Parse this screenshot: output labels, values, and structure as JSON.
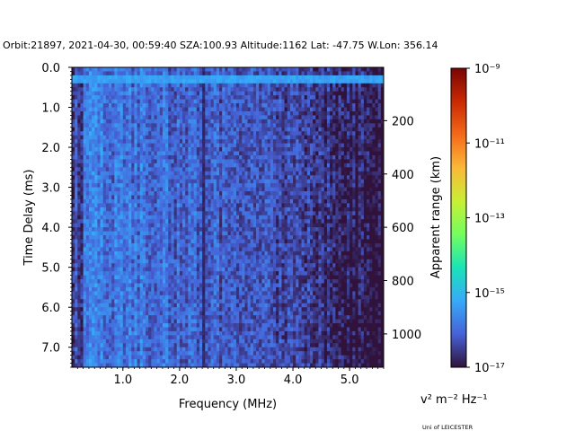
{
  "chart_data": {
    "type": "heatmap",
    "title": "Orbit:21897, 2021-04-30, 00:59:40 SZA:100.93 Altitude:1162 Lat: -47.75 W.Lon: 356.14",
    "xlabel": "Frequency (MHz)",
    "ylabel": "Time Delay (ms)",
    "y2label": "Apparent range (km)",
    "xlim": [
      0.1,
      5.6
    ],
    "ylim": [
      7.5,
      0.0
    ],
    "x_ticks": [
      {
        "value": 1.0,
        "label": "1.0"
      },
      {
        "value": 2.0,
        "label": "2.0"
      },
      {
        "value": 3.0,
        "label": "3.0"
      },
      {
        "value": 4.0,
        "label": "4.0"
      },
      {
        "value": 5.0,
        "label": "5.0"
      }
    ],
    "y_ticks": [
      {
        "value": 0.0,
        "label": "0.0"
      },
      {
        "value": 1.0,
        "label": "1.0"
      },
      {
        "value": 2.0,
        "label": "2.0"
      },
      {
        "value": 3.0,
        "label": "3.0"
      },
      {
        "value": 4.0,
        "label": "4.0"
      },
      {
        "value": 5.0,
        "label": "5.0"
      },
      {
        "value": 6.0,
        "label": "6.0"
      },
      {
        "value": 7.0,
        "label": "7.0"
      }
    ],
    "y2_ticks": [
      {
        "value": 200,
        "label": "200"
      },
      {
        "value": 400,
        "label": "400"
      },
      {
        "value": 600,
        "label": "600"
      },
      {
        "value": 800,
        "label": "800"
      },
      {
        "value": 1000,
        "label": "1000"
      }
    ],
    "y2_km_per_ms": 150,
    "colorbar": {
      "label": "v² m⁻² Hz⁻¹",
      "scale": "log",
      "range": [
        1e-17,
        1e-09
      ],
      "ticks": [
        {
          "exp": -9,
          "label": "10⁻⁹"
        },
        {
          "exp": -11,
          "label": "10⁻¹¹"
        },
        {
          "exp": -13,
          "label": "10⁻¹³"
        },
        {
          "exp": -15,
          "label": "10⁻¹⁵"
        },
        {
          "exp": -17,
          "label": "10⁻¹⁷"
        }
      ],
      "colormap": [
        "#30123b",
        "#4662d8",
        "#36aaf9",
        "#1ae4b6",
        "#72fe5e",
        "#c8ef34",
        "#fbb938",
        "#f56918",
        "#c92903",
        "#7a0403"
      ]
    },
    "features": {
      "top_bright_row_delay_ms": 0.2,
      "top_bright_row_log10": -15.3,
      "dark_vertical_line_mhz": 2.4,
      "background_log10_low_freq": -15.8,
      "background_log10_high_freq": -16.8
    }
  },
  "credit": "Uni of LEICESTER"
}
